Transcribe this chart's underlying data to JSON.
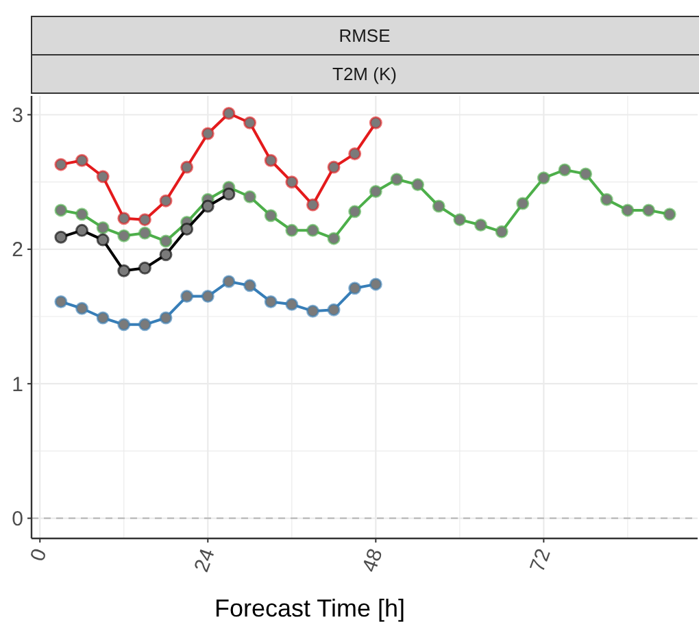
{
  "chart_data": {
    "type": "line",
    "title": "RMSE",
    "subtitle": "T2M (K)",
    "xlabel": "Forecast Time [h]",
    "xlim": [
      -1.2,
      94
    ],
    "ylim": [
      -0.15,
      3.14
    ],
    "xticks": [
      0,
      {
        "value": 12,
        "label": null
      },
      24,
      {
        "value": 36,
        "label": null
      },
      48,
      {
        "value": 60,
        "label": null
      },
      72,
      {
        "value": 84,
        "label": null
      }
    ],
    "yticks": [
      0,
      {
        "value": 0.5,
        "label": null
      },
      1,
      {
        "value": 1.5,
        "label": null
      },
      2,
      {
        "value": 2.5,
        "label": null
      },
      3
    ],
    "grid": true,
    "marker": "circle",
    "line_style": "solid",
    "ref_lines": [
      {
        "axis": "y",
        "value": 0,
        "color": "#b3b3b3",
        "line_style": "dashed"
      }
    ],
    "series": [
      {
        "color": "#e41a1c",
        "x": [
          3,
          6,
          9,
          12,
          15,
          18,
          21,
          24,
          27,
          30,
          33,
          36,
          39,
          42,
          45,
          48
        ],
        "values": [
          2.63,
          2.66,
          2.54,
          2.23,
          2.22,
          2.36,
          2.61,
          2.86,
          3.01,
          2.94,
          2.66,
          2.5,
          2.33,
          2.61,
          2.71,
          2.94
        ]
      },
      {
        "color": "#4daf4a",
        "x": [
          3,
          6,
          9,
          12,
          15,
          18,
          21,
          24,
          27,
          30,
          33,
          36,
          39,
          42,
          45,
          48,
          51,
          54,
          57,
          60,
          63,
          66,
          69,
          72,
          75,
          78,
          81,
          84,
          87,
          90
        ],
        "values": [
          2.29,
          2.26,
          2.16,
          2.1,
          2.12,
          2.06,
          2.2,
          2.37,
          2.46,
          2.39,
          2.25,
          2.14,
          2.14,
          2.08,
          2.28,
          2.43,
          2.52,
          2.48,
          2.32,
          2.22,
          2.18,
          2.13,
          2.34,
          2.53,
          2.59,
          2.56,
          2.37,
          2.29,
          2.29,
          2.26
        ]
      },
      {
        "color": "#000000",
        "x": [
          3,
          6,
          9,
          12,
          15,
          18,
          21,
          24,
          27
        ],
        "values": [
          2.09,
          2.14,
          2.07,
          1.84,
          1.86,
          1.96,
          2.15,
          2.32,
          2.41
        ]
      },
      {
        "color": "#377eb8",
        "x": [
          3,
          6,
          9,
          12,
          15,
          18,
          21,
          24,
          27,
          30,
          33,
          36,
          39,
          42,
          45,
          48
        ],
        "values": [
          1.61,
          1.56,
          1.49,
          1.44,
          1.44,
          1.49,
          1.65,
          1.65,
          1.76,
          1.73,
          1.61,
          1.59,
          1.54,
          1.55,
          1.71,
          1.74
        ]
      }
    ]
  }
}
